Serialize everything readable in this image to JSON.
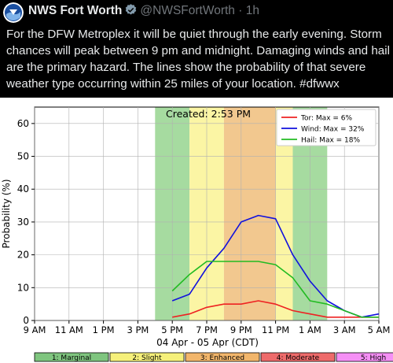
{
  "tweet": {
    "account_name": "NWS Fort Worth",
    "handle": "@NWSFortWorth",
    "separator": "·",
    "time": "1h",
    "text": "For the DFW Metroplex it will be quiet through the early evening. Storm chances will peak between 9 pm and midnight. Damaging winds and hail are the primary hazard. The lines show the probability of that severe weather type occurring within 25 miles of your location. #dfwwx",
    "icons": [
      "nws-logo-icon",
      "verified-badge-icon"
    ]
  },
  "chart_data": {
    "type": "line",
    "title": "",
    "annotation": "Created: 2:53 PM",
    "xlabel": "04 Apr - 05 Apr (CDT)",
    "ylabel": "Probability (%)",
    "ylim": [
      0,
      65
    ],
    "yticks": [
      0,
      10,
      20,
      30,
      40,
      50,
      60
    ],
    "xtick_labels": [
      "9 AM",
      "11 AM",
      "1 PM",
      "3 PM",
      "5 PM",
      "7 PM",
      "9 PM",
      "11 PM",
      "1 AM",
      "3 AM",
      "5 AM"
    ],
    "x_hours": [
      9,
      10,
      11,
      12,
      13,
      14,
      15,
      16,
      17,
      18,
      19,
      20,
      21,
      22,
      23,
      24,
      25,
      26,
      27,
      28,
      29
    ],
    "grid": true,
    "legend_position": "top-right",
    "series": [
      {
        "name": "Tor: Max = 6%",
        "color": "#ee2222",
        "values": [
          null,
          null,
          null,
          null,
          null,
          null,
          null,
          null,
          1,
          2,
          4,
          5,
          5,
          6,
          5,
          3,
          2,
          1,
          1,
          1,
          1
        ]
      },
      {
        "name": "Wind: Max = 32%",
        "color": "#1111dd",
        "values": [
          null,
          null,
          null,
          null,
          null,
          null,
          null,
          null,
          6,
          8,
          16,
          22,
          30,
          32,
          31,
          20,
          12,
          6,
          3,
          1,
          2
        ]
      },
      {
        "name": "Hail: Max = 18%",
        "color": "#22bb22",
        "values": [
          null,
          null,
          null,
          null,
          null,
          null,
          null,
          null,
          9,
          14,
          18,
          18,
          18,
          18,
          17,
          13,
          6,
          5,
          3,
          1,
          1
        ]
      }
    ],
    "risk_bands": [
      {
        "level": "marginal",
        "from_hour": 16,
        "to_hour": 18,
        "color": "#a6dba0"
      },
      {
        "level": "slight",
        "from_hour": 18,
        "to_hour": 20,
        "color": "#fbf5a4"
      },
      {
        "level": "enhanced",
        "from_hour": 20,
        "to_hour": 23,
        "color": "#f2c88f"
      },
      {
        "level": "slight",
        "from_hour": 23,
        "to_hour": 24,
        "color": "#fbf5a4"
      },
      {
        "level": "marginal",
        "from_hour": 24,
        "to_hour": 26,
        "color": "#a6dba0"
      }
    ],
    "risk_legend": [
      {
        "label": "1: Marginal",
        "color": "#7fc57f"
      },
      {
        "label": "2: Slight",
        "color": "#f5f07a"
      },
      {
        "label": "3: Enhanced",
        "color": "#f2b66b"
      },
      {
        "label": "4: Moderate",
        "color": "#ee6b6b"
      },
      {
        "label": "5: High",
        "color": "#f58ff5"
      }
    ]
  }
}
